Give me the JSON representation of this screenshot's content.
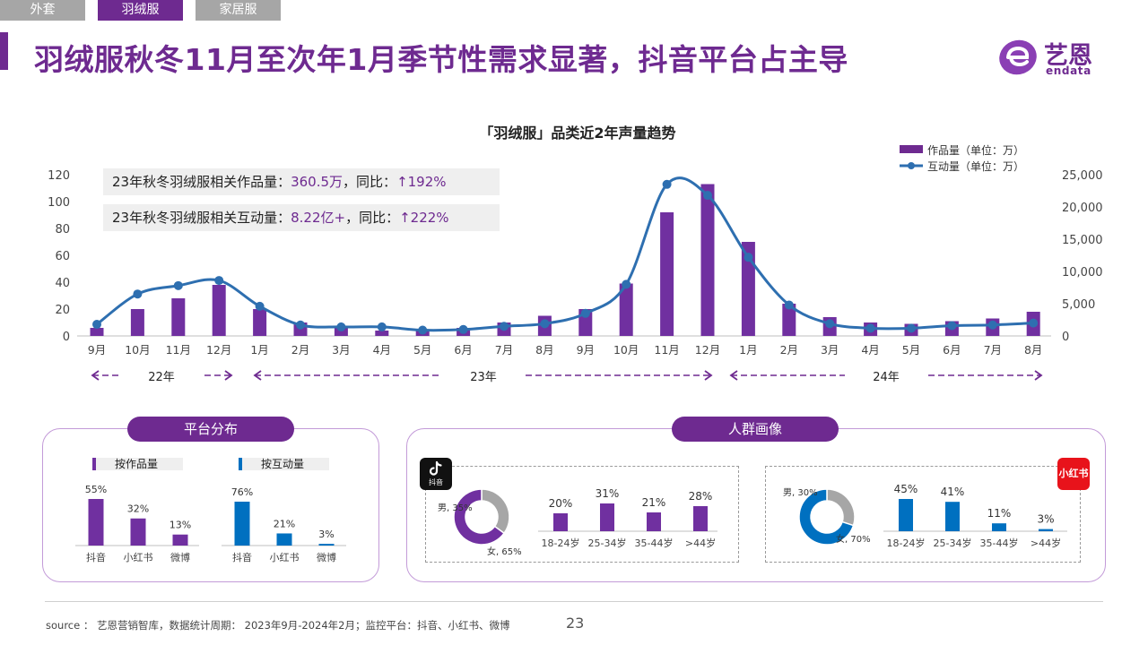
{
  "tabs": [
    {
      "label": "外套",
      "active": false
    },
    {
      "label": "羽绒服",
      "active": true
    },
    {
      "label": "家居服",
      "active": false
    }
  ],
  "title": "羽绒服秋冬11月至次年1月季节性需求显著，抖音平台占主导",
  "logo": {
    "name": "艺恩",
    "sub": "endata"
  },
  "colors": {
    "purple": "#6e2a90",
    "blue": "#2e6fb0",
    "dy_bar": "#7030a0",
    "blue_bar": "#0070c0",
    "gray": "#a6a6a6",
    "red": "#e8131b"
  },
  "callouts": [
    {
      "prefix": "23年秋冬羽绒服相关作品量：",
      "value": "360.5万",
      "mid": "，同比：",
      "change": "↑192%"
    },
    {
      "prefix": "23年秋冬羽绒服相关互动量：",
      "value": "8.22亿+",
      "mid": "，同比：",
      "change": "↑222%"
    }
  ],
  "chart_data": {
    "type": "bar+line",
    "title": "「羽绒服」品类近2年声量趋势",
    "categories": [
      "9月",
      "10月",
      "11月",
      "12月",
      "1月",
      "2月",
      "3月",
      "4月",
      "5月",
      "6月",
      "7月",
      "8月",
      "9月",
      "10月",
      "11月",
      "12月",
      "1月",
      "2月",
      "3月",
      "4月",
      "5月",
      "6月",
      "7月",
      "8月"
    ],
    "series": [
      {
        "name": "作品量（单位：万）",
        "type": "bar",
        "axis": "left",
        "values": [
          6,
          20,
          28,
          38,
          20,
          10,
          7,
          4,
          4,
          6,
          10,
          15,
          20,
          39,
          92,
          113,
          70,
          24,
          14,
          10,
          9,
          11,
          13,
          18
        ]
      },
      {
        "name": "互动量（单位：万）",
        "type": "line",
        "axis": "right",
        "values": [
          1800,
          6500,
          7800,
          8600,
          4600,
          1700,
          1400,
          1400,
          900,
          1000,
          1500,
          1900,
          3500,
          8000,
          23500,
          21800,
          12200,
          4800,
          1900,
          1200,
          1200,
          1600,
          1700,
          2000
        ]
      }
    ],
    "ylim_left": [
      0,
      120
    ],
    "yticks_left": [
      "0",
      "20",
      "40",
      "60",
      "80",
      "100",
      "120"
    ],
    "ylim_right": [
      0,
      25000
    ],
    "yticks_right": [
      "0",
      "5,000",
      "10,000",
      "15,000",
      "20,000",
      "25,000"
    ],
    "year_labels": [
      "22年",
      "23年",
      "24年"
    ],
    "legend_position": "top-right",
    "grid": false
  },
  "platform": {
    "title": "平台分布",
    "works": {
      "label": "按作品量",
      "categories": [
        "抖音",
        "小红书",
        "微博"
      ],
      "values": [
        55,
        32,
        13
      ],
      "labels": [
        "55%",
        "32%",
        "13%"
      ]
    },
    "interactions": {
      "label": "按互动量",
      "categories": [
        "抖音",
        "小红书",
        "微博"
      ],
      "values": [
        76,
        21,
        3
      ],
      "labels": [
        "76%",
        "21%",
        "3%"
      ]
    }
  },
  "audience": {
    "title": "人群画像",
    "douyin": {
      "badge": "抖音",
      "gender": [
        {
          "label": "男, 35%",
          "value": 35
        },
        {
          "label": "女, 65%",
          "value": 65
        }
      ],
      "ages": {
        "categories": [
          "18-24岁",
          "25-34岁",
          "35-44岁",
          ">44岁"
        ],
        "values": [
          20,
          31,
          21,
          28
        ],
        "labels": [
          "20%",
          "31%",
          "21%",
          "28%"
        ]
      }
    },
    "xiaohongshu": {
      "badge": "小红书",
      "gender": [
        {
          "label": "男, 30%",
          "value": 30
        },
        {
          "label": "女, 70%",
          "value": 70
        }
      ],
      "ages": {
        "categories": [
          "18-24岁",
          "25-34岁",
          "35-44岁",
          ">44岁"
        ],
        "values": [
          45,
          41,
          11,
          3
        ],
        "labels": [
          "45%",
          "41%",
          "11%",
          "3%"
        ]
      }
    }
  },
  "footer": {
    "source": "source ： 艺恩营销智库，数据统计周期： 2023年9月-2024年2月；监控平台：抖音、小红书、微博",
    "page": "23"
  }
}
